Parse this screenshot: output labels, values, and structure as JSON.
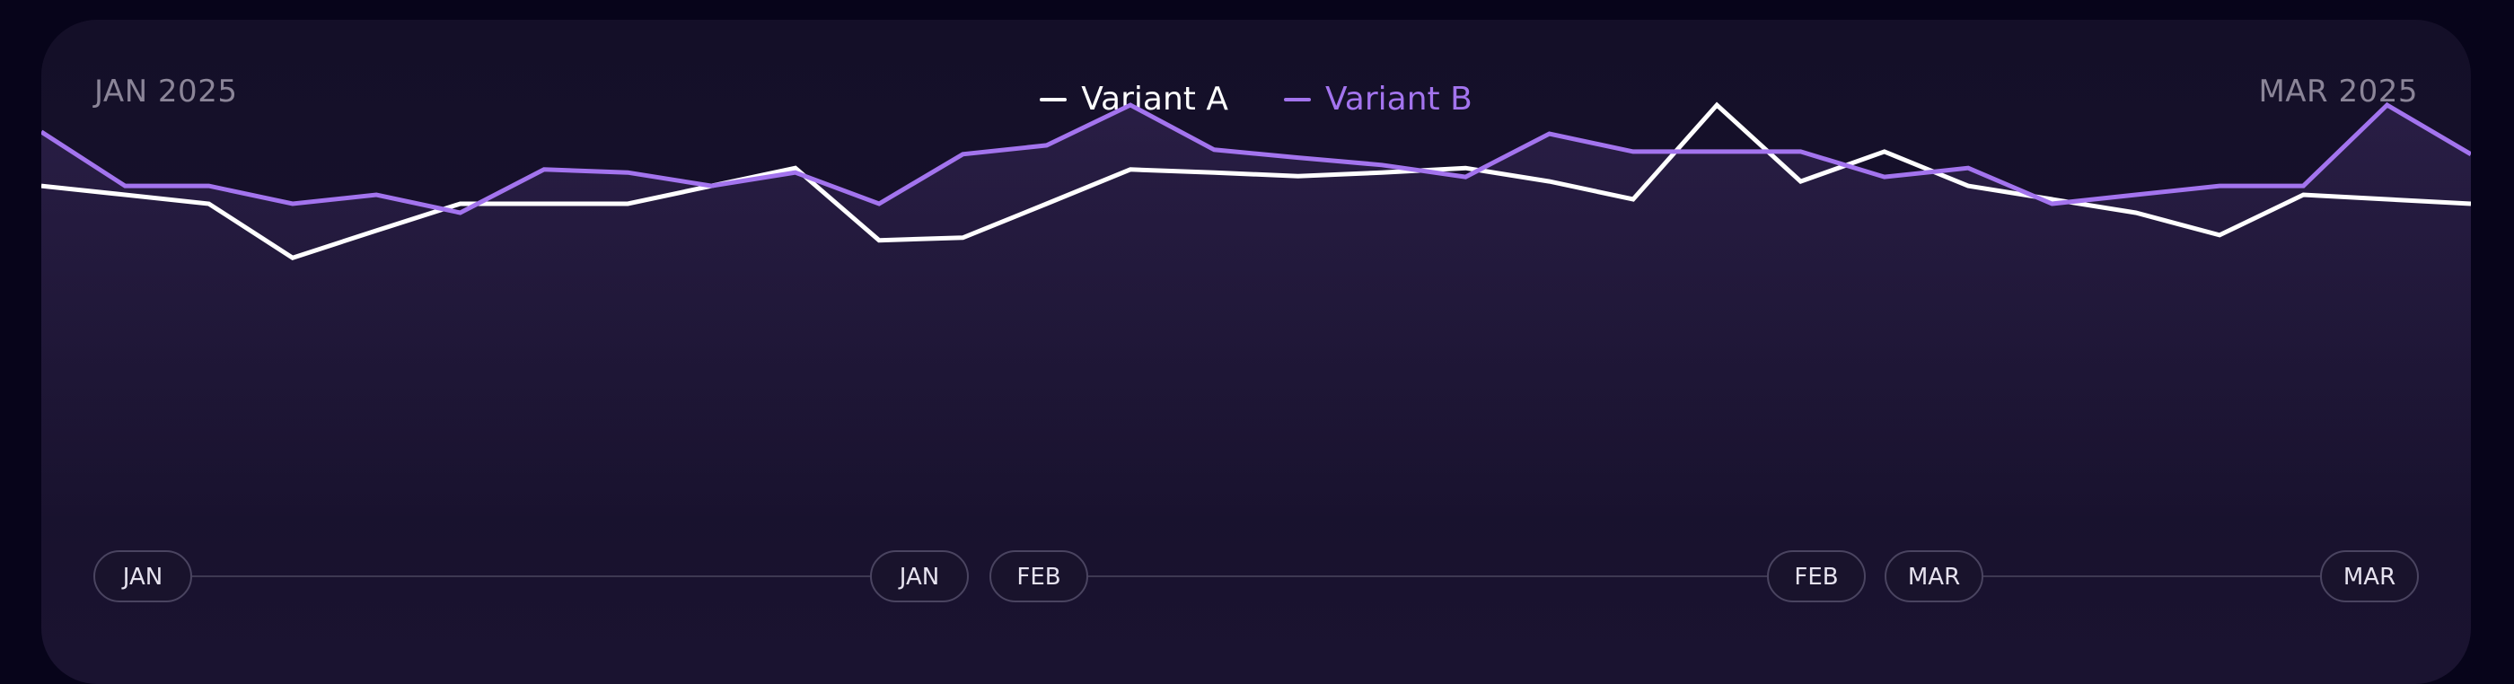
{
  "colors": {
    "background": "#07041a",
    "card": "#160f2c",
    "variant_a": "#ffffff",
    "variant_b": "#a374ee",
    "muted_text": "#8b8598",
    "pill_border": "#4a4460"
  },
  "header": {
    "start_label": "JAN 2025",
    "end_label": "MAR 2025"
  },
  "chart_data": {
    "type": "line",
    "title": "",
    "xlabel": "",
    "ylabel": "",
    "x": [
      0,
      1,
      2,
      3,
      4,
      5,
      6,
      7,
      8,
      9,
      10,
      11,
      12,
      13,
      14,
      15,
      16,
      17,
      18,
      19,
      20,
      21,
      22,
      23,
      24,
      25,
      26,
      27,
      28,
      29
    ],
    "ylim": [
      0,
      100
    ],
    "grid": false,
    "legend_position": "top-center",
    "series": [
      {
        "name": "Variant A",
        "color": "#ffffff",
        "values": [
          55.4,
          53.0,
          50.6,
          36.1,
          43.4,
          50.6,
          50.6,
          50.6,
          55.4,
          60.2,
          40.8,
          41.5,
          50.6,
          59.8,
          59.0,
          58.0,
          59.0,
          60.2,
          56.6,
          51.8,
          77.1,
          56.6,
          64.6,
          55.4,
          51.8,
          48.2,
          42.2,
          53.0,
          51.8,
          50.6
        ]
      },
      {
        "name": "Variant B",
        "color": "#a374ee",
        "values": [
          69.9,
          55.4,
          55.4,
          50.6,
          53.0,
          48.2,
          59.8,
          59.0,
          55.4,
          59.0,
          50.6,
          63.9,
          66.3,
          77.1,
          65.1,
          63.0,
          61.0,
          57.8,
          69.4,
          64.6,
          64.6,
          64.6,
          57.8,
          60.2,
          50.6,
          53.0,
          55.4,
          55.4,
          77.1,
          63.9
        ]
      }
    ],
    "timeline": [
      {
        "label": "JAN",
        "start": "JAN",
        "end": "JAN"
      },
      {
        "label": "FEB",
        "start": "FEB",
        "end": "FEB"
      },
      {
        "label": "MAR",
        "start": "MAR",
        "end": "MAR"
      }
    ]
  }
}
